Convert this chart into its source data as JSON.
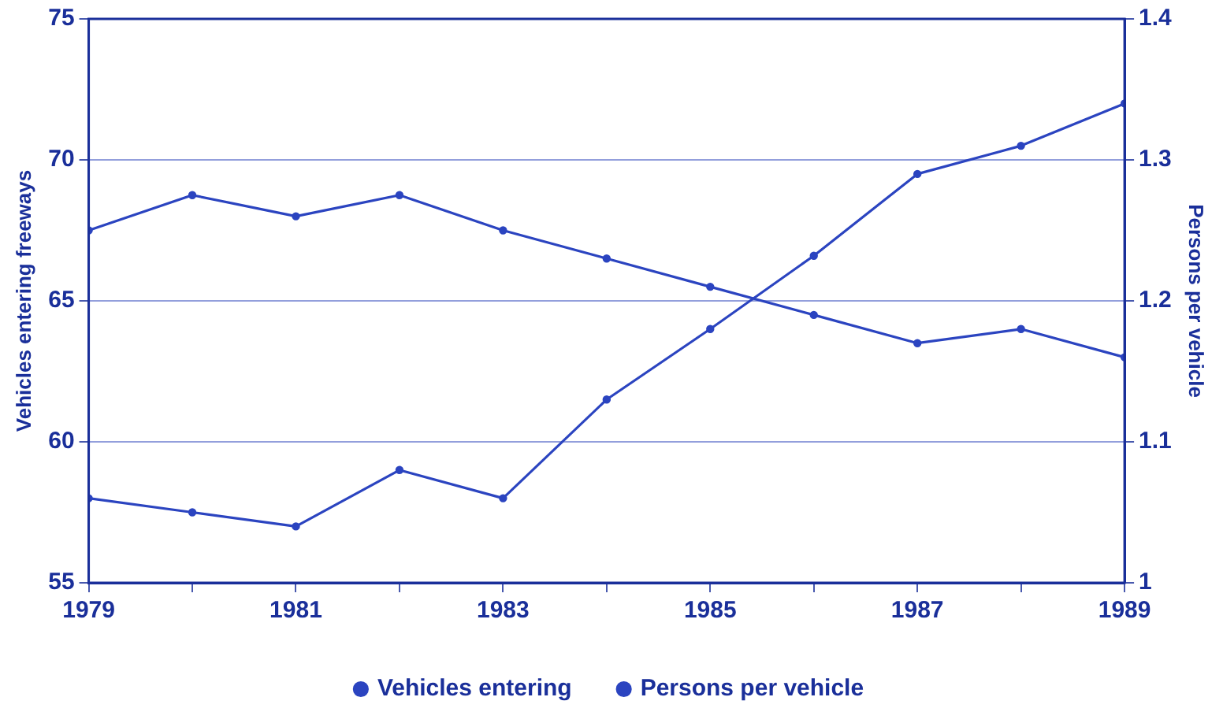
{
  "chart_data": {
    "type": "line",
    "ylabel": "Vehicles entering freeways",
    "y2label": "Persons per vehicle",
    "x": [
      1979,
      1980,
      1981,
      1982,
      1983,
      1984,
      1985,
      1986,
      1987,
      1988,
      1989
    ],
    "series": [
      {
        "name": "Vehicles entering",
        "color": "#2b44c0",
        "values": [
          58,
          57.5,
          57,
          59,
          58,
          61.5,
          64,
          66.6,
          69.5,
          70.5,
          72
        ]
      },
      {
        "name": "Persons per vehicle",
        "color": "#2b44c0",
        "axis": "y2",
        "values": [
          1.25,
          1.275,
          1.26,
          1.275,
          1.25,
          1.23,
          1.21,
          1.19,
          1.17,
          1.18,
          1.16
        ]
      }
    ],
    "xlim": [
      1979,
      1989
    ],
    "xticks": [
      1979,
      {
        "value": 1980,
        "label": null
      },
      1981,
      {
        "value": 1982,
        "label": null
      },
      1983,
      {
        "value": 1984,
        "label": null
      },
      1985,
      {
        "value": 1986,
        "label": null
      },
      1987,
      {
        "value": 1988,
        "label": null
      },
      1989
    ],
    "ylim": [
      55,
      75
    ],
    "yticks": [
      55,
      60,
      65,
      70,
      75
    ],
    "y2lim": [
      1,
      1.4
    ],
    "y2ticks": [
      1,
      1.1,
      1.2,
      1.3,
      1.4
    ],
    "grid": "y",
    "legend": "bottom",
    "marker": "circle",
    "line_style": "solid"
  }
}
